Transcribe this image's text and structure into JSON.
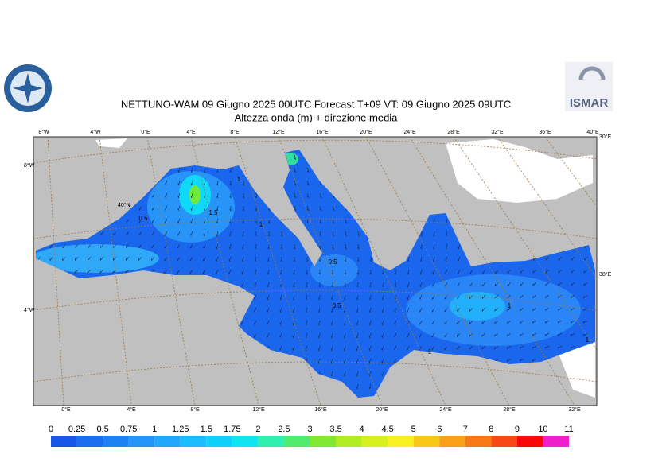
{
  "title": "NETTUNO-WAM  09   Giugno  2025 00UTC Forecast T+09 VT: 09   Giugno  2025 09UTC",
  "subtitle": "Altezza onda (m) + direzione media",
  "logo_text": "ISMAR",
  "top_lon_labels": [
    "8°W",
    "4°W",
    "0°E",
    "4°E",
    "8°E",
    "12°E",
    "16°E",
    "20°E",
    "24°E",
    "28°E",
    "32°E",
    "36°E",
    "40°E"
  ],
  "bottom_lon_labels": [
    "0°E",
    "4°E",
    "8°E",
    "12°E",
    "16°E",
    "20°E",
    "24°E",
    "28°E",
    "32°E"
  ],
  "left_lat_labels": [
    "8°W",
    "40°N",
    "4°W"
  ],
  "right_labels": [
    "30°E",
    "38°E"
  ],
  "contour_labels": [
    "1",
    "1.5",
    "0.5",
    "1",
    "0.5",
    "0.5",
    "1",
    "1",
    "1"
  ],
  "colorbar": {
    "labels": [
      0,
      0.25,
      0.5,
      0.75,
      1,
      1.25,
      1.5,
      1.75,
      2,
      2.5,
      3,
      3.5,
      4,
      4.5,
      5,
      6,
      7,
      8,
      9,
      10,
      11
    ],
    "colors": [
      "#1458e6",
      "#1a6cf0",
      "#2080f6",
      "#2494f9",
      "#22a8fa",
      "#1abcfa",
      "#10d0fa",
      "#10e4f0",
      "#30f0b0",
      "#50ec70",
      "#80e830",
      "#b0ec20",
      "#d8f020",
      "#f8f020",
      "#f8c818",
      "#f8a018",
      "#f87818",
      "#f84818",
      "#f80808",
      "#f020c8"
    ]
  }
}
